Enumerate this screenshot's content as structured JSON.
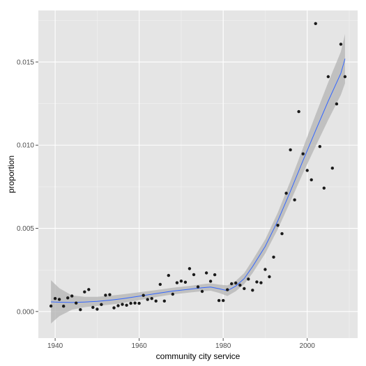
{
  "chart_data": {
    "type": "scatter",
    "title": "",
    "xlabel": "community city service",
    "ylabel": "proportion",
    "xlim": [
      1936,
      2012
    ],
    "ylim": [
      -0.0016,
      0.0181
    ],
    "x_ticks": [
      1940,
      1960,
      1980,
      2000
    ],
    "x_tick_labels": [
      "1940",
      "1960",
      "1980",
      "2000"
    ],
    "y_ticks": [
      0.0,
      0.005,
      0.01,
      0.015
    ],
    "y_tick_labels": [
      "0.000",
      "0.005",
      "0.010",
      "0.015"
    ],
    "grid": true,
    "legend": "none",
    "colors": {
      "panel": "#e5e5e5",
      "grid_major": "#ffffff",
      "points": "#1a1a1a",
      "smooth_line": "#3366ff",
      "confidence_band": "#b3b3b3"
    },
    "points": [
      [
        1939,
        0.00033
      ],
      [
        1940,
        0.00078
      ],
      [
        1941,
        0.00073
      ],
      [
        1942,
        0.00032
      ],
      [
        1943,
        0.00082
      ],
      [
        1944,
        0.00093
      ],
      [
        1945,
        0.00051
      ],
      [
        1946,
        0.00011
      ],
      [
        1947,
        0.00118
      ],
      [
        1948,
        0.00132
      ],
      [
        1949,
        0.00025
      ],
      [
        1950,
        0.00014
      ],
      [
        1951,
        0.00042
      ],
      [
        1952,
        0.00098
      ],
      [
        1953,
        0.00101
      ],
      [
        1954,
        0.00022
      ],
      [
        1955,
        0.00035
      ],
      [
        1956,
        0.00043
      ],
      [
        1957,
        0.00038
      ],
      [
        1958,
        0.00049
      ],
      [
        1959,
        0.00051
      ],
      [
        1960,
        0.00049
      ],
      [
        1961,
        0.00097
      ],
      [
        1962,
        0.00072
      ],
      [
        1963,
        0.00078
      ],
      [
        1964,
        0.00063
      ],
      [
        1965,
        0.00163
      ],
      [
        1966,
        0.00063
      ],
      [
        1967,
        0.00217
      ],
      [
        1968,
        0.00104
      ],
      [
        1969,
        0.00173
      ],
      [
        1970,
        0.00183
      ],
      [
        1971,
        0.00176
      ],
      [
        1972,
        0.00258
      ],
      [
        1973,
        0.00222
      ],
      [
        1974,
        0.00148
      ],
      [
        1975,
        0.00121
      ],
      [
        1976,
        0.00232
      ],
      [
        1977,
        0.00182
      ],
      [
        1978,
        0.00221
      ],
      [
        1979,
        0.00066
      ],
      [
        1980,
        0.00066
      ],
      [
        1981,
        0.00131
      ],
      [
        1982,
        0.00167
      ],
      [
        1983,
        0.00171
      ],
      [
        1984,
        0.00158
      ],
      [
        1985,
        0.00138
      ],
      [
        1986,
        0.00195
      ],
      [
        1987,
        0.00128
      ],
      [
        1988,
        0.00178
      ],
      [
        1989,
        0.00173
      ],
      [
        1990,
        0.00253
      ],
      [
        1991,
        0.00209
      ],
      [
        1992,
        0.00327
      ],
      [
        1993,
        0.00518
      ],
      [
        1994,
        0.00468
      ],
      [
        1995,
        0.00711
      ],
      [
        1996,
        0.00972
      ],
      [
        1997,
        0.00671
      ],
      [
        1998,
        0.01202
      ],
      [
        1999,
        0.00948
      ],
      [
        2000,
        0.00848
      ],
      [
        2001,
        0.00792
      ],
      [
        2002,
        0.01731
      ],
      [
        2003,
        0.00992
      ],
      [
        2004,
        0.00742
      ],
      [
        2005,
        0.01412
      ],
      [
        2006,
        0.00862
      ],
      [
        2007,
        0.01248
      ],
      [
        2008,
        0.01607
      ],
      [
        2009,
        0.01412
      ]
    ],
    "smooth": {
      "x": [
        1939,
        1941,
        1944,
        1947,
        1950,
        1953,
        1956,
        1960,
        1964,
        1968,
        1972,
        1975,
        1977,
        1979,
        1981,
        1983,
        1985,
        1987,
        1990,
        1993,
        1996,
        1999,
        2002,
        2005,
        2008,
        2009
      ],
      "y": [
        0.00058,
        0.00056,
        0.00054,
        0.00057,
        0.00061,
        0.00068,
        0.00077,
        0.00092,
        0.00108,
        0.00123,
        0.00134,
        0.00143,
        0.00147,
        0.00137,
        0.00125,
        0.00153,
        0.00198,
        0.0027,
        0.00391,
        0.00545,
        0.00723,
        0.00908,
        0.01088,
        0.01265,
        0.01432,
        0.0152
      ],
      "lo": [
        -0.00072,
        -0.00028,
        0.00011,
        0.00026,
        0.00034,
        0.00041,
        0.00051,
        0.00068,
        0.00087,
        0.00103,
        0.00114,
        0.00122,
        0.00125,
        0.00112,
        0.00093,
        0.00122,
        0.00165,
        0.00231,
        0.00349,
        0.00495,
        0.00662,
        0.00832,
        0.00993,
        0.01152,
        0.01302,
        0.01372
      ],
      "hi": [
        0.00188,
        0.0014,
        0.00097,
        0.00088,
        0.00088,
        0.00095,
        0.00103,
        0.00116,
        0.00129,
        0.00143,
        0.00154,
        0.00164,
        0.00169,
        0.00162,
        0.00157,
        0.00184,
        0.00231,
        0.00309,
        0.00433,
        0.00595,
        0.00784,
        0.00984,
        0.01183,
        0.01378,
        0.01562,
        0.01668
      ]
    }
  }
}
